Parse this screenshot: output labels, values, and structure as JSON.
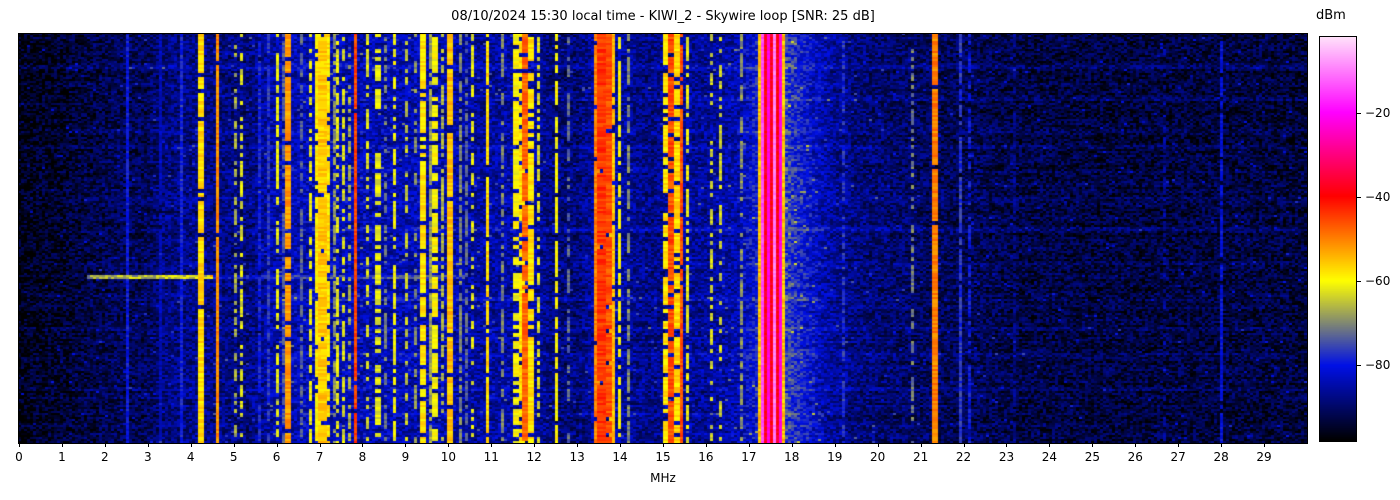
{
  "title": "08/10/2024 15:30 local time - KIWI_2 - Skywire loop [SNR: 25 dB]",
  "x_axis": {
    "label": "MHz",
    "range": [
      0,
      30
    ],
    "ticks": [
      "0",
      "1",
      "2",
      "3",
      "4",
      "5",
      "6",
      "7",
      "8",
      "9",
      "10",
      "11",
      "12",
      "13",
      "14",
      "15",
      "16",
      "17",
      "18",
      "19",
      "20",
      "21",
      "22",
      "23",
      "24",
      "25",
      "26",
      "27",
      "28",
      "29"
    ],
    "tick_values": [
      0,
      1,
      2,
      3,
      4,
      5,
      6,
      7,
      8,
      9,
      10,
      11,
      12,
      13,
      14,
      15,
      16,
      17,
      18,
      19,
      20,
      21,
      22,
      23,
      24,
      25,
      26,
      27,
      28,
      29
    ]
  },
  "colorbar": {
    "label": "dBm",
    "range": [
      -98,
      -2
    ],
    "ticks": [
      {
        "label": "−20",
        "value": -20
      },
      {
        "label": "−40",
        "value": -40
      },
      {
        "label": "−60",
        "value": -60
      },
      {
        "label": "−80",
        "value": -80
      }
    ]
  },
  "chart_data": {
    "type": "heatmap",
    "subtype": "hf-radio-spectrogram-waterfall",
    "title": "08/10/2024 15:30 local time - KIWI_2 - Skywire loop [SNR: 25 dB]",
    "xlabel": "MHz",
    "x_range": [
      0,
      30
    ],
    "value_unit": "dBm",
    "value_range": [
      -98,
      -2
    ],
    "colorbar_ticks": [
      -20,
      -40,
      -60,
      -80
    ],
    "colormap_stops": [
      [
        0.0,
        [
          0,
          0,
          0
        ]
      ],
      [
        0.186,
        [
          0,
          16,
          230
        ]
      ],
      [
        0.396,
        [
          255,
          255,
          0
        ]
      ],
      [
        0.606,
        [
          255,
          0,
          0
        ]
      ],
      [
        0.814,
        [
          255,
          0,
          255
        ]
      ],
      [
        1.0,
        [
          255,
          224,
          250
        ]
      ]
    ],
    "grid": {
      "cols": 430,
      "rows": 205
    },
    "seed": 1337,
    "noise_variance_db": 5.5,
    "row_jitter_db": 1.5,
    "speckle": {
      "prob": 0.015,
      "boost_db": 9
    },
    "noise_floor_profile_mhz_dbm": [
      [
        0.0,
        -97
      ],
      [
        0.3,
        -95
      ],
      [
        1.0,
        -94.5
      ],
      [
        1.5,
        -93
      ],
      [
        2.2,
        -91.5
      ],
      [
        3.0,
        -91
      ],
      [
        3.4,
        -88.5
      ],
      [
        4.0,
        -87.5
      ],
      [
        4.8,
        -88
      ],
      [
        5.4,
        -88.5
      ],
      [
        5.9,
        -85
      ],
      [
        6.5,
        -84
      ],
      [
        7.5,
        -84
      ],
      [
        8.5,
        -84.5
      ],
      [
        9.3,
        -84
      ],
      [
        10.2,
        -85
      ],
      [
        10.8,
        -86
      ],
      [
        11.4,
        -85
      ],
      [
        12.0,
        -85.5
      ],
      [
        12.4,
        -88.5
      ],
      [
        13.0,
        -89
      ],
      [
        13.4,
        -85.5
      ],
      [
        14.0,
        -85.5
      ],
      [
        14.6,
        -88
      ],
      [
        15.3,
        -86
      ],
      [
        16.0,
        -86.5
      ],
      [
        16.8,
        -84.5
      ],
      [
        17.2,
        -80
      ],
      [
        17.9,
        -76
      ],
      [
        18.2,
        -79
      ],
      [
        18.8,
        -85
      ],
      [
        19.5,
        -88.5
      ],
      [
        20.5,
        -90
      ],
      [
        21.5,
        -91
      ],
      [
        22.5,
        -91.5
      ],
      [
        23.5,
        -92.5
      ],
      [
        25.0,
        -93
      ],
      [
        27.0,
        -93
      ],
      [
        29.0,
        -93
      ],
      [
        30.0,
        -93.5
      ]
    ],
    "signals_f_w_level_duty": [
      [
        2.56,
        1,
        -80,
        1.0
      ],
      [
        3.34,
        1,
        -84,
        0.9
      ],
      [
        3.8,
        1,
        -79,
        1.0
      ],
      [
        4.25,
        2,
        -57,
        0.95
      ],
      [
        4.62,
        1,
        -51,
        0.95
      ],
      [
        5.05,
        1,
        -67,
        0.5
      ],
      [
        5.22,
        1,
        -63,
        0.55
      ],
      [
        5.62,
        1,
        -79,
        0.8
      ],
      [
        5.84,
        1,
        -77,
        0.9
      ],
      [
        6.02,
        1,
        -62,
        0.6
      ],
      [
        6.18,
        1,
        -74,
        0.7
      ],
      [
        6.3,
        2,
        -52,
        0.9
      ],
      [
        6.62,
        1,
        -73,
        0.6
      ],
      [
        6.8,
        1,
        -62,
        0.5
      ],
      [
        6.96,
        2,
        -59,
        0.85
      ],
      [
        7.08,
        3,
        -56,
        0.9
      ],
      [
        7.22,
        2,
        -58,
        0.8
      ],
      [
        7.34,
        1,
        -69,
        0.7
      ],
      [
        7.46,
        1,
        -62,
        0.55
      ],
      [
        7.58,
        1,
        -63,
        0.5
      ],
      [
        7.7,
        1,
        -67,
        0.45
      ],
      [
        7.88,
        1,
        -45,
        0.97
      ],
      [
        8.12,
        1,
        -63,
        0.5
      ],
      [
        8.34,
        2,
        -62,
        0.5
      ],
      [
        8.56,
        1,
        -71,
        0.4
      ],
      [
        8.74,
        1,
        -61,
        0.6
      ],
      [
        9.06,
        1,
        -65,
        0.5
      ],
      [
        9.26,
        1,
        -69,
        0.4
      ],
      [
        9.42,
        2,
        -58,
        0.8
      ],
      [
        9.58,
        1,
        -68,
        0.9
      ],
      [
        9.7,
        2,
        -60,
        0.7
      ],
      [
        9.9,
        1,
        -66,
        0.6
      ],
      [
        10.06,
        2,
        -55,
        0.9
      ],
      [
        10.26,
        1,
        -70,
        0.8
      ],
      [
        10.42,
        1,
        -73,
        0.6
      ],
      [
        10.56,
        1,
        -62,
        0.5
      ],
      [
        10.9,
        1,
        -57,
        0.9
      ],
      [
        11.25,
        1,
        -70,
        0.6
      ],
      [
        11.56,
        2,
        -60,
        0.7
      ],
      [
        11.7,
        2,
        -58,
        0.75
      ],
      [
        11.82,
        2,
        -48,
        0.9
      ],
      [
        11.95,
        2,
        -58,
        0.8
      ],
      [
        12.1,
        1,
        -63,
        0.6
      ],
      [
        12.5,
        1,
        -60,
        0.85
      ],
      [
        12.82,
        1,
        -73,
        0.5
      ],
      [
        13.45,
        2,
        -50,
        0.95
      ],
      [
        13.57,
        3,
        -44,
        0.97
      ],
      [
        13.69,
        3,
        -46,
        0.95
      ],
      [
        13.81,
        2,
        -55,
        0.9
      ],
      [
        14.0,
        1,
        -60,
        0.8
      ],
      [
        14.22,
        1,
        -70,
        0.6
      ],
      [
        15.1,
        2,
        -58,
        0.8
      ],
      [
        15.22,
        2,
        -46,
        0.9
      ],
      [
        15.35,
        2,
        -57,
        0.8
      ],
      [
        15.47,
        1,
        -46,
        0.9
      ],
      [
        15.6,
        1,
        -62,
        0.7
      ],
      [
        16.15,
        1,
        -64,
        0.5
      ],
      [
        16.35,
        1,
        -64,
        0.5
      ],
      [
        16.85,
        1,
        -69,
        0.6
      ],
      [
        19.25,
        1,
        -77,
        0.5
      ],
      [
        20.85,
        1,
        -71,
        0.5
      ],
      [
        21.36,
        2,
        -50,
        0.95
      ],
      [
        21.95,
        1,
        -77,
        0.9
      ],
      [
        22.12,
        1,
        -80,
        0.7
      ],
      [
        23.2,
        1,
        -87,
        0.5
      ],
      [
        26.7,
        1,
        -86,
        0.4
      ],
      [
        28.0,
        1,
        -81,
        0.9
      ]
    ],
    "strong_band": {
      "f0": 17.25,
      "f1": 17.88,
      "level": -38,
      "edge_level": -55,
      "edge_width": 0.06,
      "stripes_f_level": [
        [
          17.33,
          -14
        ],
        [
          17.47,
          -22
        ],
        [
          17.61,
          -10
        ],
        [
          17.75,
          -22
        ]
      ]
    },
    "streaks_yfrac_f0_f1_boost": [
      [
        0.595,
        1.6,
        4.5,
        24
      ],
      [
        0.595,
        4.5,
        10.4,
        8
      ],
      [
        0.08,
        0,
        30,
        2.5
      ],
      [
        0.16,
        5.8,
        30,
        2.5
      ],
      [
        0.275,
        0,
        30,
        3
      ],
      [
        0.33,
        5.8,
        18.8,
        2.5
      ],
      [
        0.4,
        0,
        30,
        2
      ],
      [
        0.475,
        5.8,
        30,
        3
      ],
      [
        0.56,
        0,
        30,
        2
      ],
      [
        0.645,
        5.8,
        18.8,
        3
      ],
      [
        0.72,
        0,
        30,
        2.5
      ],
      [
        0.785,
        5.8,
        30,
        2
      ],
      [
        0.865,
        0,
        30,
        3
      ],
      [
        0.93,
        5.8,
        18.8,
        2.5
      ]
    ]
  }
}
